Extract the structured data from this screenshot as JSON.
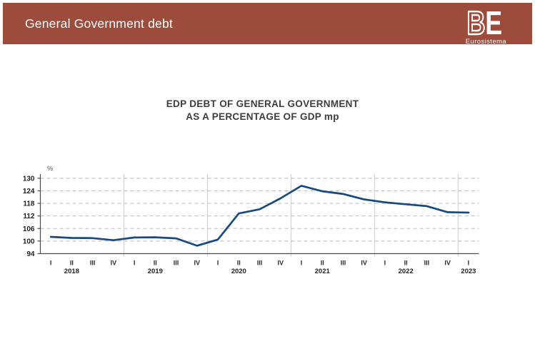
{
  "header": {
    "title": "General Government debt",
    "logo_b": "B",
    "logo_e": "E",
    "logo_sub": "Eurosistema"
  },
  "colors": {
    "header_bg": "#9d4b3a",
    "line": "#17497f",
    "gridline": "#c3c3c3",
    "year_separator": "#cccccc",
    "axis": "#4a4a4a",
    "tick_text": "#1f1f1f"
  },
  "chart_data": {
    "type": "line",
    "title_line1": "EDP DEBT OF GENERAL GOVERNMENT",
    "title_line2": "AS A PERCENTAGE OF GDP mp",
    "unit_label": "%",
    "ylim": [
      94,
      132
    ],
    "yticks": [
      100,
      106,
      112,
      118,
      124,
      130
    ],
    "ymin_axis_label": 94,
    "grid": "dashed-horizontal",
    "legend": "none",
    "series_name": "EDP debt of general government (% of GDP mp)",
    "quarter_labels": [
      "I",
      "II",
      "III",
      "IV",
      "I",
      "II",
      "III",
      "IV",
      "I",
      "II",
      "III",
      "IV",
      "I",
      "II",
      "III",
      "IV",
      "I",
      "II",
      "III",
      "IV",
      "I"
    ],
    "years": [
      {
        "label": "2018",
        "quarters": 4
      },
      {
        "label": "2019",
        "quarters": 4
      },
      {
        "label": "2020",
        "quarters": 4
      },
      {
        "label": "2021",
        "quarters": 4
      },
      {
        "label": "2022",
        "quarters": 4
      },
      {
        "label": "2023",
        "quarters": 1
      }
    ],
    "values": [
      102.0,
      101.5,
      101.4,
      100.4,
      101.7,
      101.8,
      101.3,
      97.8,
      100.7,
      113.2,
      115.2,
      120.4,
      126.4,
      123.8,
      122.5,
      119.9,
      118.5,
      117.6,
      116.7,
      113.8,
      113.6
    ]
  }
}
